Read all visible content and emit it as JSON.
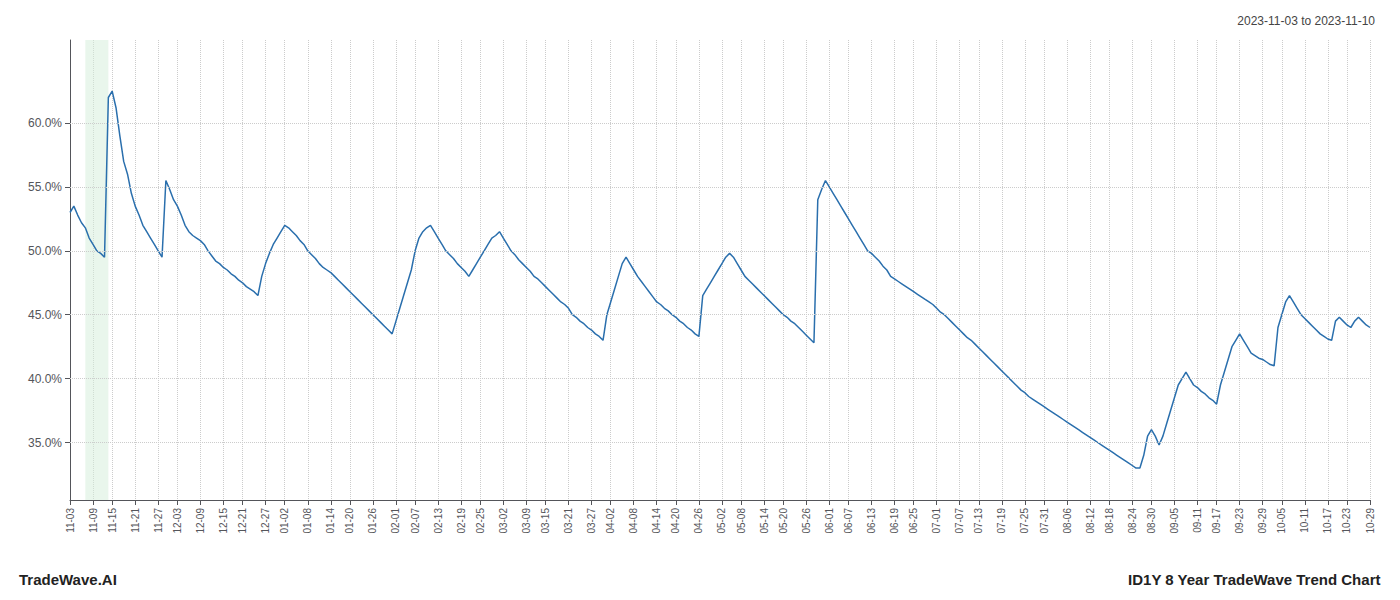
{
  "chart_data": {
    "type": "line",
    "title": "2023-11-03 to 2023-11-10",
    "annotations": [
      "TradeWave.AI",
      "ID1Y 8 Year TradeWave Trend Chart"
    ],
    "categories": [
      "11-03",
      null,
      null,
      null,
      null,
      null,
      "11-09",
      null,
      null,
      null,
      null,
      "11-15",
      null,
      null,
      null,
      null,
      null,
      "11-21",
      null,
      null,
      null,
      null,
      null,
      "11-27",
      null,
      null,
      null,
      null,
      "12-03",
      null,
      null,
      null,
      null,
      null,
      "12-09",
      null,
      null,
      null,
      null,
      null,
      "12-15",
      null,
      null,
      null,
      null,
      "12-21",
      null,
      null,
      null,
      null,
      null,
      "12-27",
      null,
      null,
      null,
      null,
      "01-02",
      null,
      null,
      null,
      null,
      null,
      "01-08",
      null,
      null,
      null,
      null,
      null,
      "01-14",
      null,
      null,
      null,
      null,
      "01-20",
      null,
      null,
      null,
      null,
      null,
      "01-26",
      null,
      null,
      null,
      null,
      null,
      "02-01",
      null,
      null,
      null,
      null,
      "02-07",
      null,
      null,
      null,
      null,
      null,
      "02-13",
      null,
      null,
      null,
      null,
      null,
      "02-19",
      null,
      null,
      null,
      null,
      "02-25",
      null,
      null,
      null,
      null,
      null,
      "03-02",
      null,
      null,
      null,
      null,
      null,
      "03-09",
      null,
      null,
      null,
      null,
      "03-15",
      null,
      null,
      null,
      null,
      null,
      "03-21",
      null,
      null,
      null,
      null,
      null,
      "03-27",
      null,
      null,
      null,
      null,
      "04-02",
      null,
      null,
      null,
      null,
      null,
      "04-08",
      null,
      null,
      null,
      null,
      null,
      "04-14",
      null,
      null,
      null,
      null,
      "04-20",
      null,
      null,
      null,
      null,
      null,
      "04-26",
      null,
      null,
      null,
      null,
      null,
      "05-02",
      null,
      null,
      null,
      null,
      "05-08",
      null,
      null,
      null,
      null,
      null,
      "05-14",
      null,
      null,
      null,
      null,
      "05-20",
      null,
      null,
      null,
      null,
      null,
      "05-26",
      null,
      null,
      null,
      null,
      null,
      "06-01",
      null,
      null,
      null,
      null,
      "06-07",
      null,
      null,
      null,
      null,
      null,
      "06-13",
      null,
      null,
      null,
      null,
      null,
      "06-19",
      null,
      null,
      null,
      null,
      "06-25",
      null,
      null,
      null,
      null,
      null,
      "07-01",
      null,
      null,
      null,
      null,
      null,
      "07-07",
      null,
      null,
      null,
      null,
      "07-13",
      null,
      null,
      null,
      null,
      null,
      "07-19",
      null,
      null,
      null,
      null,
      null,
      "07-25",
      null,
      null,
      null,
      null,
      "07-31",
      null,
      null,
      null,
      null,
      null,
      "08-06",
      null,
      null,
      null,
      null,
      null,
      "08-12",
      null,
      null,
      null,
      null,
      "08-18",
      null,
      null,
      null,
      null,
      null,
      "08-24",
      null,
      null,
      null,
      null,
      "08-30",
      null,
      null,
      null,
      null,
      null,
      "09-05",
      null,
      null,
      null,
      null,
      null,
      "09-11",
      null,
      null,
      null,
      null,
      "09-17",
      null,
      null,
      null,
      null,
      null,
      "09-23",
      null,
      null,
      null,
      null,
      null,
      "09-29",
      null,
      null,
      null,
      null,
      "10-05",
      null,
      null,
      null,
      null,
      null,
      "10-11",
      null,
      null,
      null,
      null,
      null,
      "10-17",
      null,
      null,
      null,
      null,
      "10-23",
      null,
      null,
      null,
      null,
      null,
      "10-29"
    ],
    "values": [
      0.53,
      0.535,
      0.528,
      0.522,
      0.518,
      0.51,
      0.505,
      0.5,
      0.498,
      0.495,
      0.62,
      0.625,
      0.612,
      0.59,
      0.57,
      0.56,
      0.545,
      0.535,
      0.528,
      0.52,
      0.515,
      0.51,
      0.505,
      0.5,
      0.495,
      0.555,
      0.548,
      0.54,
      0.535,
      0.528,
      0.52,
      0.515,
      0.512,
      0.51,
      0.508,
      0.505,
      0.5,
      0.496,
      0.492,
      0.49,
      0.487,
      0.485,
      0.482,
      0.48,
      0.477,
      0.475,
      0.472,
      0.47,
      0.468,
      0.465,
      0.48,
      0.49,
      0.498,
      0.505,
      0.51,
      0.515,
      0.52,
      0.518,
      0.515,
      0.512,
      0.508,
      0.505,
      0.5,
      0.497,
      0.494,
      0.49,
      0.487,
      0.485,
      0.483,
      0.48,
      0.477,
      0.474,
      0.471,
      0.468,
      0.465,
      0.462,
      0.459,
      0.456,
      0.453,
      0.45,
      0.447,
      0.444,
      0.441,
      0.438,
      0.435,
      0.445,
      0.455,
      0.465,
      0.475,
      0.485,
      0.5,
      0.51,
      0.515,
      0.518,
      0.52,
      0.515,
      0.51,
      0.505,
      0.5,
      0.497,
      0.494,
      0.49,
      0.487,
      0.484,
      0.48,
      0.485,
      0.49,
      0.495,
      0.5,
      0.505,
      0.51,
      0.512,
      0.515,
      0.51,
      0.505,
      0.5,
      0.497,
      0.493,
      0.49,
      0.487,
      0.484,
      0.48,
      0.478,
      0.475,
      0.472,
      0.469,
      0.466,
      0.463,
      0.46,
      0.458,
      0.455,
      0.45,
      0.448,
      0.445,
      0.443,
      0.44,
      0.438,
      0.435,
      0.433,
      0.43,
      0.45,
      0.46,
      0.47,
      0.48,
      0.49,
      0.495,
      0.49,
      0.485,
      0.48,
      0.476,
      0.472,
      0.468,
      0.464,
      0.46,
      0.458,
      0.455,
      0.453,
      0.45,
      0.448,
      0.445,
      0.443,
      0.44,
      0.438,
      0.435,
      0.433,
      0.465,
      0.47,
      0.475,
      0.48,
      0.485,
      0.49,
      0.495,
      0.498,
      0.495,
      0.49,
      0.485,
      0.48,
      0.477,
      0.474,
      0.471,
      0.468,
      0.465,
      0.462,
      0.459,
      0.456,
      0.453,
      0.45,
      0.448,
      0.445,
      0.443,
      0.44,
      0.437,
      0.434,
      0.431,
      0.428,
      0.54,
      0.548,
      0.555,
      0.55,
      0.545,
      0.54,
      0.535,
      0.53,
      0.525,
      0.52,
      0.515,
      0.51,
      0.505,
      0.5,
      0.498,
      0.495,
      0.492,
      0.488,
      0.485,
      0.48,
      0.478,
      0.476,
      0.474,
      0.472,
      0.47,
      0.468,
      0.466,
      0.464,
      0.462,
      0.46,
      0.458,
      0.455,
      0.452,
      0.45,
      0.447,
      0.444,
      0.441,
      0.438,
      0.435,
      0.432,
      0.43,
      0.427,
      0.424,
      0.421,
      0.418,
      0.415,
      0.412,
      0.409,
      0.406,
      0.403,
      0.4,
      0.397,
      0.394,
      0.391,
      0.389,
      0.386,
      0.384,
      0.382,
      0.38,
      0.378,
      0.376,
      0.374,
      0.372,
      0.37,
      0.368,
      0.366,
      0.364,
      0.362,
      0.36,
      0.358,
      0.356,
      0.354,
      0.352,
      0.35,
      0.348,
      0.346,
      0.344,
      0.342,
      0.34,
      0.338,
      0.336,
      0.334,
      0.332,
      0.33,
      0.33,
      0.34,
      0.355,
      0.36,
      0.355,
      0.348,
      0.355,
      0.365,
      0.375,
      0.385,
      0.395,
      0.4,
      0.405,
      0.4,
      0.395,
      0.393,
      0.39,
      0.388,
      0.385,
      0.383,
      0.38,
      0.395,
      0.405,
      0.415,
      0.425,
      0.43,
      0.435,
      0.43,
      0.425,
      0.42,
      0.418,
      0.416,
      0.415,
      0.413,
      0.411,
      0.41,
      0.44,
      0.45,
      0.46,
      0.465,
      0.46,
      0.455,
      0.45,
      0.447,
      0.444,
      0.441,
      0.438,
      0.435,
      0.433,
      0.431,
      0.43,
      0.445,
      0.448,
      0.445,
      0.442,
      0.44,
      0.445,
      0.448,
      0.445,
      0.442,
      0.44
    ],
    "color": "#2a6fad",
    "ylim": [
      0.305,
      0.665
    ],
    "yticks": [
      {
        "value": 0.35,
        "label": "35.0%"
      },
      {
        "value": 0.4,
        "label": "40.0%"
      },
      {
        "value": 0.45,
        "label": "45.0%"
      },
      {
        "value": 0.5,
        "label": "50.0%"
      },
      {
        "value": 0.55,
        "label": "55.0%"
      },
      {
        "value": 0.6,
        "label": "60.0%"
      }
    ],
    "grid": true,
    "shade": {
      "start": 4,
      "end": 10,
      "color": "#d4edda"
    }
  }
}
